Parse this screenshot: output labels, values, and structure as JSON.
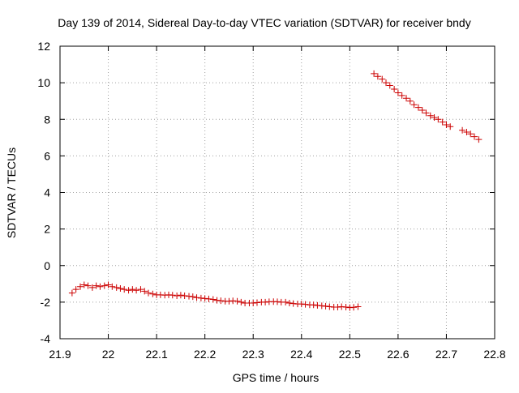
{
  "chart_data": {
    "type": "scatter",
    "title": "Day 139 of 2014, Sidereal Day-to-day VTEC variation (SDTVAR) for receiver bndy",
    "xlabel": "GPS time / hours",
    "ylabel": "SDTVAR / TECUs",
    "xlim": [
      21.9,
      22.8
    ],
    "ylim": [
      -4,
      12
    ],
    "xticks": [
      "21.9",
      "22",
      "22.1",
      "22.2",
      "22.3",
      "22.4",
      "22.5",
      "22.6",
      "22.7",
      "22.8"
    ],
    "yticks": [
      "-4",
      "-2",
      "0",
      "2",
      "4",
      "6",
      "8",
      "10",
      "12"
    ],
    "grid": true,
    "marker": "+",
    "color": "#cc0000",
    "series": [
      {
        "name": "SDTVAR",
        "x": [
          21.925,
          21.933,
          21.942,
          21.95,
          21.958,
          21.967,
          21.975,
          21.983,
          21.992,
          22.0,
          22.008,
          22.017,
          22.025,
          22.033,
          22.042,
          22.05,
          22.058,
          22.067,
          22.075,
          22.083,
          22.092,
          22.1,
          22.108,
          22.117,
          22.125,
          22.133,
          22.142,
          22.15,
          22.158,
          22.167,
          22.175,
          22.183,
          22.192,
          22.2,
          22.208,
          22.217,
          22.225,
          22.233,
          22.242,
          22.25,
          22.258,
          22.267,
          22.275,
          22.283,
          22.292,
          22.3,
          22.308,
          22.317,
          22.325,
          22.333,
          22.342,
          22.35,
          22.358,
          22.367,
          22.375,
          22.383,
          22.392,
          22.4,
          22.408,
          22.417,
          22.425,
          22.433,
          22.442,
          22.45,
          22.458,
          22.467,
          22.475,
          22.483,
          22.492,
          22.5,
          22.508,
          22.517,
          22.55,
          22.558,
          22.567,
          22.575,
          22.583,
          22.592,
          22.6,
          22.608,
          22.617,
          22.625,
          22.633,
          22.642,
          22.65,
          22.658,
          22.667,
          22.675,
          22.683,
          22.692,
          22.7,
          22.708,
          22.733,
          22.742,
          22.75,
          22.758,
          22.767
        ],
        "y": [
          -1.5,
          -1.3,
          -1.15,
          -1.05,
          -1.1,
          -1.2,
          -1.1,
          -1.15,
          -1.1,
          -1.05,
          -1.15,
          -1.2,
          -1.25,
          -1.3,
          -1.35,
          -1.3,
          -1.35,
          -1.3,
          -1.4,
          -1.5,
          -1.55,
          -1.6,
          -1.6,
          -1.62,
          -1.6,
          -1.62,
          -1.65,
          -1.62,
          -1.65,
          -1.68,
          -1.7,
          -1.75,
          -1.78,
          -1.8,
          -1.82,
          -1.85,
          -1.9,
          -1.92,
          -1.95,
          -1.95,
          -1.93,
          -1.95,
          -2.0,
          -2.05,
          -2.05,
          -2.05,
          -2.03,
          -2.0,
          -2.0,
          -1.98,
          -1.97,
          -1.98,
          -2.0,
          -2.0,
          -2.05,
          -2.08,
          -2.1,
          -2.1,
          -2.12,
          -2.15,
          -2.15,
          -2.18,
          -2.2,
          -2.22,
          -2.25,
          -2.27,
          -2.27,
          -2.25,
          -2.27,
          -2.3,
          -2.28,
          -2.25,
          10.5,
          10.35,
          10.2,
          10.0,
          9.85,
          9.65,
          9.45,
          9.3,
          9.15,
          9.0,
          8.8,
          8.65,
          8.5,
          8.35,
          8.2,
          8.1,
          8.0,
          7.85,
          7.7,
          7.6,
          7.4,
          7.3,
          7.2,
          7.05,
          6.9
        ]
      }
    ]
  }
}
